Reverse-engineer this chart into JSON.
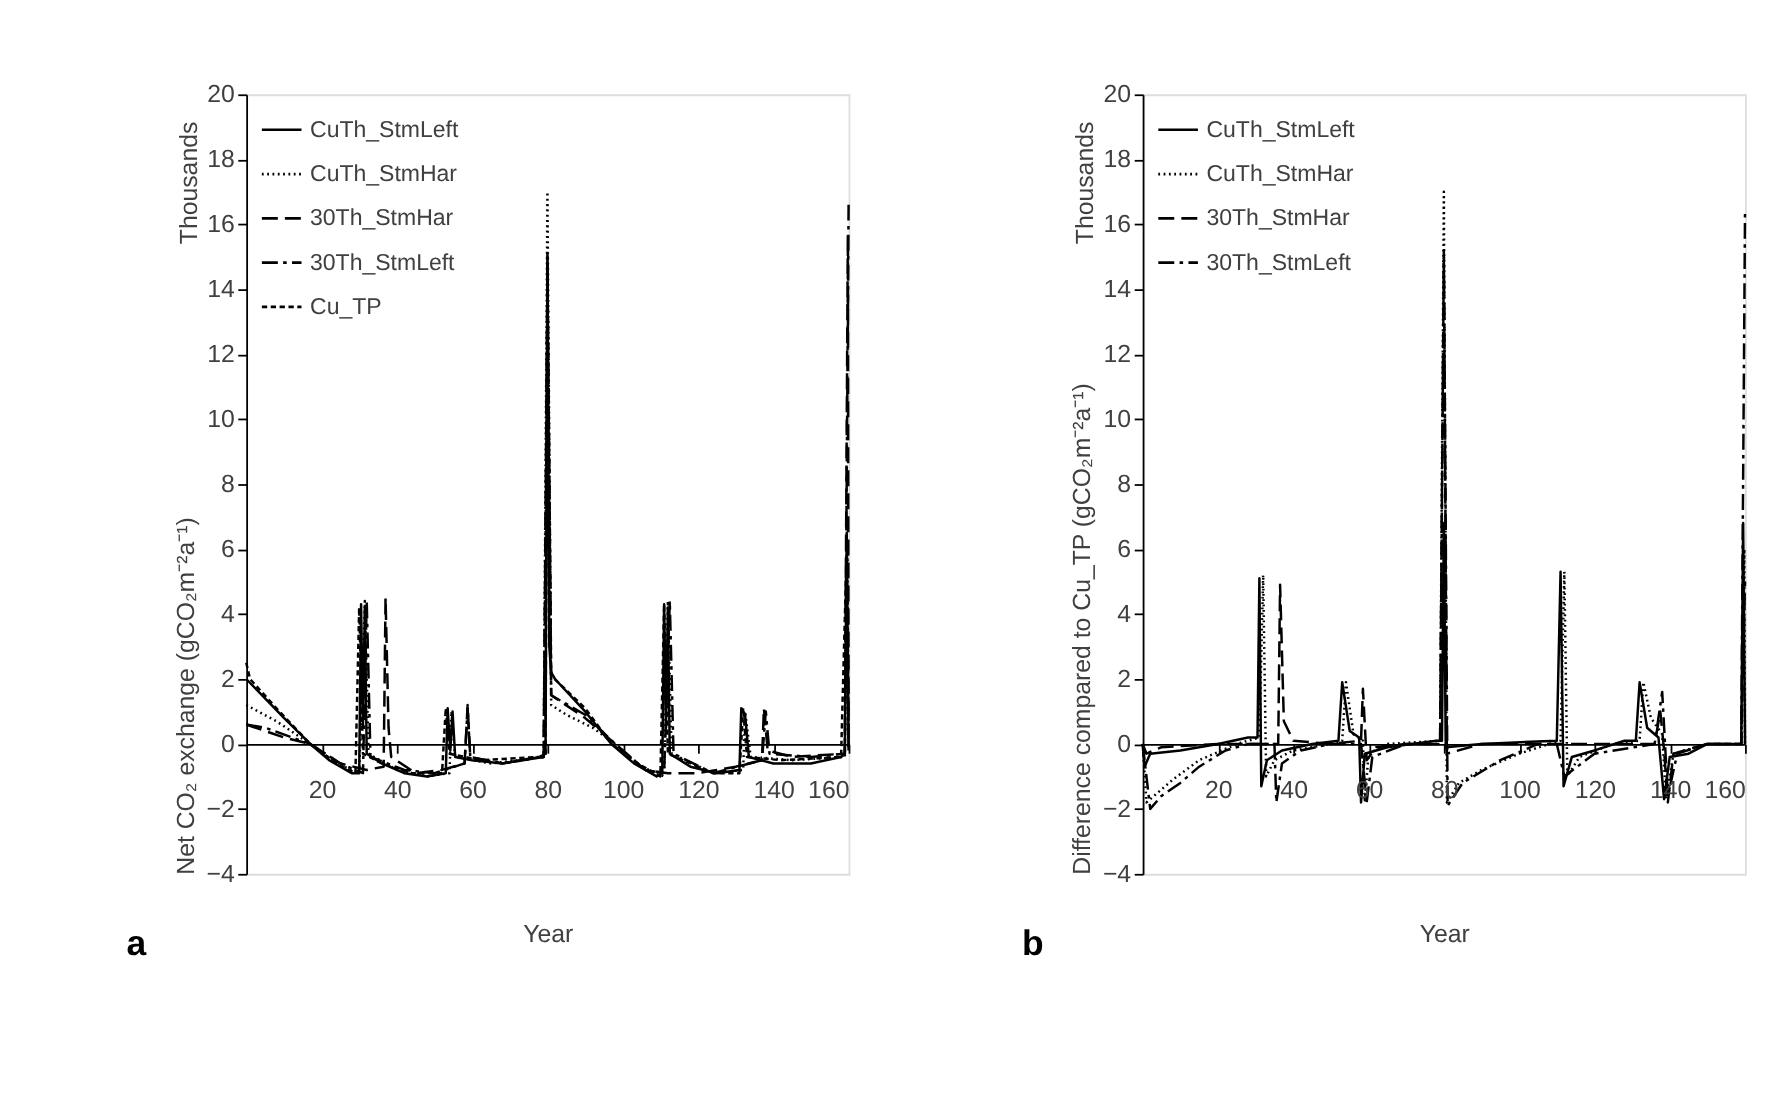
{
  "chart_data": [
    {
      "type": "line",
      "xlabel": "Year",
      "ylabel": "Net CO₂ exchange  (gCO₂m⁻²a⁻¹)",
      "annotations": [
        "Thousands",
        "a"
      ],
      "xlim": [
        0,
        160
      ],
      "xticks": [
        20,
        40,
        60,
        80,
        100,
        120,
        140,
        160
      ],
      "ylim": [
        -4,
        20
      ],
      "yticks": [
        -4,
        -2,
        0,
        2,
        4,
        6,
        8,
        10,
        12,
        14,
        16,
        18,
        20
      ],
      "legend": "top left",
      "series": [
        {
          "name": "CuTh_StmLeft",
          "color": "#000000",
          "line_style": "solid",
          "x": [
            0,
            5,
            10,
            17,
            22,
            28,
            30,
            30.5,
            31,
            31.5,
            32,
            36,
            42,
            48,
            53,
            53.5,
            54.2,
            54.8,
            55.5,
            60,
            68,
            78,
            79.5,
            80,
            80.5,
            81,
            82,
            90,
            97,
            103,
            109,
            110.5,
            111,
            111.5,
            112,
            112.5,
            118,
            125,
            131,
            131.5,
            132.5,
            133.5,
            140,
            150,
            158,
            159,
            159.5,
            160
          ],
          "values": [
            2.0,
            1.4,
            0.8,
            0,
            -0.5,
            -0.9,
            -0.9,
            4.3,
            0.5,
            4.2,
            -0.3,
            -0.6,
            -0.9,
            -1.0,
            -0.9,
            1.1,
            -0.2,
            1.0,
            -0.4,
            -0.5,
            -0.6,
            -0.4,
            -0.3,
            15.1,
            3,
            2.2,
            2.0,
            1.0,
            0,
            -0.6,
            -1.0,
            -0.9,
            4.3,
            0.5,
            4.2,
            -0.3,
            -0.7,
            -0.9,
            -0.8,
            1.1,
            0.9,
            -0.4,
            -0.6,
            -0.6,
            -0.4,
            -0.3,
            6.5,
            -0.2
          ]
        },
        {
          "name": "CuTh_StmHar",
          "color": "#000000",
          "line_style": "dotted",
          "x": [
            0,
            8,
            17,
            24,
            30,
            31.5,
            32.5,
            40,
            48,
            54,
            54.5,
            55.5,
            65,
            79,
            80,
            81,
            85,
            92,
            98,
            105,
            111,
            112,
            113,
            124,
            132,
            132.5,
            134,
            145,
            159,
            159.7,
            160
          ],
          "values": [
            1.2,
            0.7,
            0,
            -0.6,
            -0.9,
            4.4,
            -0.3,
            -0.8,
            -1.0,
            -0.9,
            1.0,
            -0.4,
            -0.6,
            -0.4,
            17.0,
            1.2,
            0.9,
            0.5,
            0,
            -0.7,
            -1.0,
            4.4,
            -0.3,
            -0.9,
            -0.8,
            1.0,
            -0.4,
            -0.5,
            -0.4,
            6.0,
            -0.2
          ]
        },
        {
          "name": "30Th_StmHar",
          "color": "#000000",
          "line_style": "longdash",
          "x": [
            0,
            5,
            10,
            17,
            25,
            32,
            36.5,
            37,
            37.8,
            38.5,
            45,
            52,
            58,
            58.8,
            59.5,
            68,
            79,
            80,
            81,
            90,
            98,
            106,
            112,
            120,
            130,
            137,
            137.5,
            138.5,
            145,
            159,
            159.8,
            160
          ],
          "values": [
            0.6,
            0.4,
            0.2,
            0,
            -0.6,
            -0.8,
            -0.7,
            4.5,
            0.5,
            -0.4,
            -0.9,
            -0.8,
            -0.6,
            1.2,
            -0.4,
            -0.6,
            -0.4,
            14.8,
            1.5,
            0.8,
            0,
            -0.8,
            -0.9,
            -0.9,
            -0.7,
            -0.5,
            1.1,
            -0.2,
            -0.4,
            -0.3,
            15.7,
            -0.1
          ]
        },
        {
          "name": "30Th_StmLeft",
          "color": "#000000",
          "line_style": "dashdot",
          "x": [
            0,
            5,
            17,
            25,
            31,
            32,
            33,
            42,
            50,
            58,
            58.8,
            59.5,
            68,
            79,
            80,
            81,
            90,
            98,
            106,
            111,
            112.5,
            113.5,
            124,
            137,
            138,
            139,
            150,
            159,
            160
          ],
          "values": [
            0.6,
            0.5,
            0,
            -0.6,
            -0.9,
            4.4,
            -0.4,
            -0.8,
            -0.9,
            -0.6,
            1.1,
            -0.4,
            -0.6,
            -0.4,
            13.0,
            1.5,
            0.9,
            0,
            -0.8,
            -0.9,
            4.4,
            -0.3,
            -0.9,
            -0.5,
            1.0,
            -0.3,
            -0.4,
            -0.3,
            16.6
          ]
        },
        {
          "name": "Cu_TP",
          "color": "#000000",
          "line_style": "dashed",
          "x": [
            0,
            1,
            8,
            17,
            24,
            29,
            30,
            31,
            36,
            44,
            52,
            53,
            54,
            62,
            78,
            79.5,
            80,
            81,
            90,
            97,
            104,
            110,
            111,
            112,
            124,
            131,
            132,
            133,
            142,
            158,
            159.5,
            160
          ],
          "values": [
            2.5,
            2.0,
            1.1,
            0,
            -0.6,
            -0.9,
            4.2,
            -0.3,
            -0.6,
            -0.9,
            -0.9,
            1.1,
            -0.3,
            -0.5,
            -0.4,
            -0.3,
            15.0,
            2.1,
            1.1,
            0,
            -0.6,
            -1.0,
            4.3,
            -0.3,
            -0.9,
            -0.9,
            1.1,
            -0.4,
            -0.5,
            -0.4,
            6.0,
            -0.2
          ]
        }
      ]
    },
    {
      "type": "line",
      "xlabel": "Year",
      "ylabel": "Difference compared to Cu_TP (gCO₂m⁻²a⁻¹)",
      "annotations": [
        "Thousands",
        "b"
      ],
      "xlim": [
        0,
        160
      ],
      "xticks": [
        20,
        40,
        60,
        80,
        100,
        120,
        140,
        160
      ],
      "ylim": [
        -4,
        20
      ],
      "yticks": [
        -4,
        -2,
        0,
        2,
        4,
        6,
        8,
        10,
        12,
        14,
        16,
        18,
        20
      ],
      "legend": "top left",
      "series": [
        {
          "name": "CuTh_StmLeft",
          "color": "#000000",
          "line_style": "solid",
          "x": [
            0,
            0.5,
            2,
            10,
            20,
            28,
            30.5,
            31,
            31.5,
            33,
            37,
            45,
            52,
            53,
            55,
            57.5,
            58,
            59,
            65,
            78,
            79.5,
            80,
            80.5,
            90,
            110,
            111,
            111.8,
            114,
            120,
            128,
            131,
            132,
            134,
            137,
            138.5,
            140,
            145,
            150,
            158,
            159,
            159.5,
            160
          ],
          "values": [
            0,
            -0.7,
            -0.3,
            -0.2,
            0,
            0.2,
            0.2,
            5.1,
            -1.3,
            -0.5,
            -0.2,
            0,
            0.1,
            1.9,
            0.4,
            0.2,
            -1.8,
            -0.3,
            -0.1,
            0.1,
            0.1,
            6.8,
            -0.1,
            0,
            0.1,
            5.3,
            -1.3,
            -0.4,
            -0.2,
            0.1,
            0.1,
            1.9,
            0.5,
            0.2,
            -1.7,
            -0.4,
            -0.3,
            0,
            0,
            0,
            6.8,
            0
          ]
        },
        {
          "name": "CuTh_StmHar",
          "color": "#000000",
          "line_style": "dotted",
          "x": [
            0,
            1,
            3,
            8,
            15,
            25,
            31,
            32,
            32.8,
            35,
            40,
            50,
            53,
            54,
            56,
            58.5,
            59,
            60,
            65,
            79,
            80,
            80.8,
            84,
            90,
            100,
            108,
            111,
            112,
            112.8,
            116,
            125,
            132,
            133,
            135,
            138,
            139,
            141,
            150,
            159,
            159.8,
            160
          ],
          "values": [
            0,
            -1.8,
            -1.6,
            -1.1,
            -0.5,
            0,
            0.2,
            5.2,
            -1.0,
            -0.5,
            -0.2,
            0,
            0.1,
            1.9,
            0.3,
            0.1,
            -1.8,
            -0.3,
            0,
            0.1,
            17.0,
            -1.8,
            -1.2,
            -0.8,
            -0.3,
            0,
            0.1,
            5.3,
            -1.0,
            -0.4,
            0,
            0.1,
            1.9,
            0.8,
            0.3,
            -1.7,
            -0.3,
            0,
            0,
            6.0,
            0
          ]
        },
        {
          "name": "30Th_StmHar",
          "color": "#000000",
          "line_style": "longdash",
          "x": [
            0,
            1,
            5,
            20,
            36,
            36.5,
            37.5,
            40,
            50,
            58,
            58.5,
            59.5,
            62,
            70,
            79,
            80,
            80.8,
            90,
            136,
            137.5,
            138.5,
            139.5,
            141,
            150,
            159,
            160
          ],
          "values": [
            0,
            -0.3,
            -0.1,
            0,
            0,
            4.9,
            0.7,
            0.1,
            0,
            0.1,
            1.7,
            -0.5,
            -0.1,
            0,
            0,
            15.0,
            -0.3,
            0,
            0,
            1.0,
            -0.2,
            -1.8,
            -0.3,
            0,
            0,
            5.0
          ]
        },
        {
          "name": "30Th_StmLeft",
          "color": "#000000",
          "line_style": "dashdot",
          "x": [
            0,
            2,
            5,
            10,
            15,
            22,
            28,
            35,
            35.5,
            37,
            42,
            50,
            58,
            59.5,
            61,
            70,
            79,
            80,
            81,
            85,
            95,
            105,
            110,
            112,
            120,
            136,
            138,
            139.5,
            142,
            150,
            159,
            160
          ],
          "values": [
            0,
            -2.0,
            -1.6,
            -1.2,
            -0.7,
            -0.2,
            0,
            0,
            -1.8,
            -0.6,
            -0.2,
            0,
            0,
            -1.8,
            -0.4,
            0,
            0,
            15.2,
            -1.9,
            -1.2,
            -0.5,
            0,
            0,
            -1.0,
            -0.3,
            0,
            1.6,
            -1.6,
            -0.3,
            0,
            0,
            16.4
          ]
        }
      ]
    }
  ]
}
